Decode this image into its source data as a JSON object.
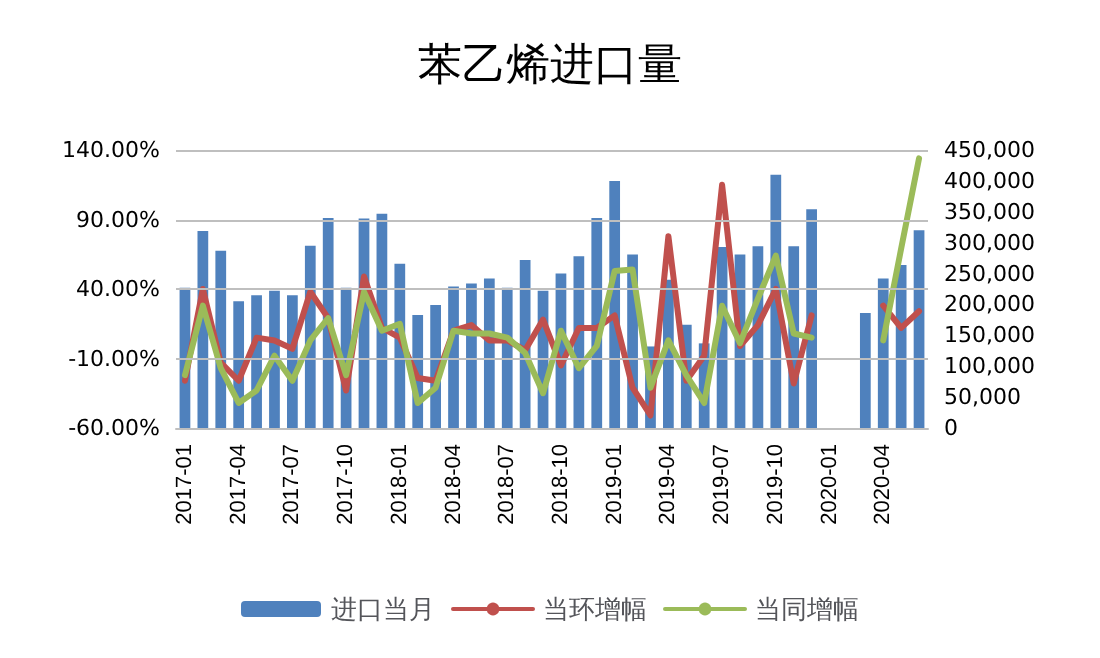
{
  "chart_data": {
    "type": "bar",
    "title": "苯乙烯进口量",
    "categories": [
      "2017-01",
      null,
      null,
      "2017-04",
      null,
      null,
      "2017-07",
      null,
      null,
      "2017-10",
      null,
      null,
      "2018-01",
      null,
      null,
      "2018-04",
      null,
      null,
      "2018-07",
      null,
      null,
      "2018-10",
      null,
      null,
      "2019-01",
      null,
      null,
      "2019-04",
      null,
      null,
      "2019-07",
      null,
      null,
      "2019-10",
      null,
      null,
      "2020-01",
      null,
      null,
      "2020-04",
      null,
      null
    ],
    "series": [
      {
        "name": "进口当月",
        "axis": "y2",
        "color": "#4f81bd",
        "values": [
          227000,
          319000,
          287000,
          205000,
          215000,
          222000,
          215000,
          295000,
          340000,
          227000,
          339000,
          347000,
          266000,
          183000,
          199000,
          229000,
          234000,
          242000,
          227000,
          272000,
          222000,
          250000,
          278000,
          340000,
          400000,
          281000,
          132000,
          240000,
          167000,
          137000,
          293000,
          281000,
          294000,
          410000,
          294000,
          354000,
          null,
          null,
          186000,
          242000,
          264000,
          320000
        ]
      },
      {
        "name": "当环增幅",
        "type": "line",
        "color": "#c0504d",
        "values": [
          -26,
          40,
          -13,
          -26,
          5,
          3,
          -3,
          38,
          19,
          -33,
          49,
          12,
          5,
          -24,
          -26,
          10,
          14,
          3,
          3,
          -4,
          18,
          -15,
          12,
          12,
          21,
          -31,
          -51,
          78,
          -26,
          -8,
          115,
          -1,
          14,
          40,
          -28,
          21,
          null,
          null,
          null,
          28,
          12,
          24
        ]
      },
      {
        "name": "当同增幅",
        "type": "line",
        "color": "#9bbb59",
        "values": [
          -22,
          28,
          -17,
          -42,
          -33,
          -8,
          -26,
          3,
          19,
          -22,
          38,
          10,
          15,
          -42,
          -31,
          10,
          8,
          8,
          5,
          -6,
          -35,
          10,
          -17,
          -1,
          53,
          54,
          -31,
          3,
          -22,
          -42,
          28,
          1,
          33,
          64,
          8,
          5,
          null,
          null,
          null,
          3,
          69,
          134
        ]
      }
    ],
    "ylim": [
      -60,
      140
    ],
    "yticks": [
      {
        "value": -60,
        "label": "-60.00%"
      },
      {
        "value": -10,
        "label": "-10.00%"
      },
      {
        "value": 40,
        "label": "40.00%"
      },
      {
        "value": 90,
        "label": "90.00%"
      },
      {
        "value": 140,
        "label": "140.00%"
      }
    ],
    "y2lim": [
      0,
      450000
    ],
    "y2ticks": [
      0,
      {
        "value": 50000,
        "label": "50,000"
      },
      {
        "value": 100000,
        "label": "100,000"
      },
      {
        "value": 150000,
        "label": "150,000"
      },
      {
        "value": 200000,
        "label": "200,000"
      },
      {
        "value": 250000,
        "label": "250,000"
      },
      {
        "value": 300000,
        "label": "300,000"
      },
      {
        "value": 350000,
        "label": "350,000"
      },
      {
        "value": 400000,
        "label": "400,000"
      },
      {
        "value": 450000,
        "label": "450,000"
      }
    ],
    "grid": "y",
    "legend": "bottom",
    "marker": "none",
    "line_style": "solid"
  }
}
